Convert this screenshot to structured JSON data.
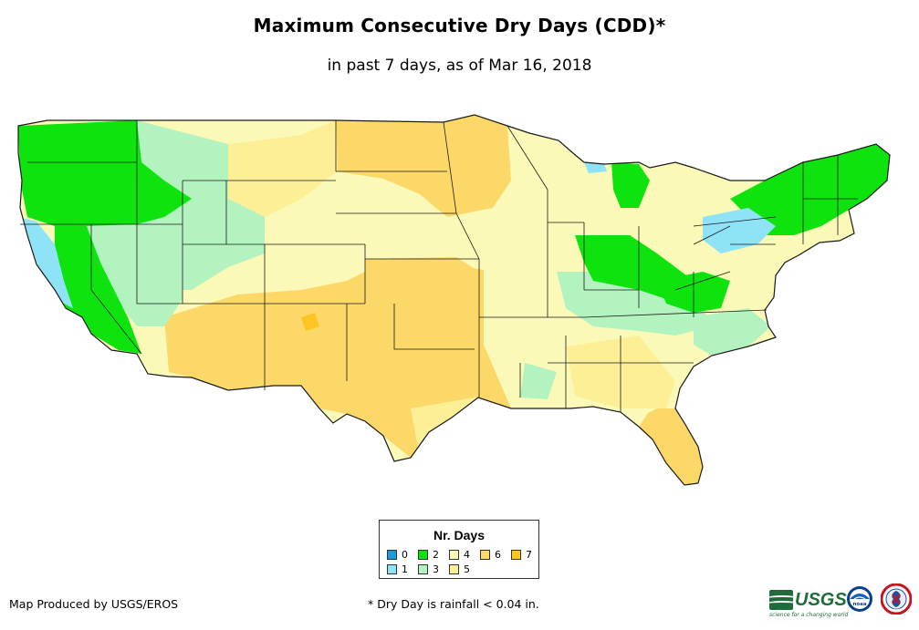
{
  "title": "Maximum Consecutive Dry Days (CDD)*",
  "subtitle": "in past 7 days, as of Mar 16, 2018",
  "legend": {
    "title": "Nr. Days",
    "items": [
      {
        "label": "0",
        "color": "#1c9bdb"
      },
      {
        "label": "1",
        "color": "#8ee3f6"
      },
      {
        "label": "2",
        "color": "#0ee30e"
      },
      {
        "label": "3",
        "color": "#b2f3c0"
      },
      {
        "label": "4",
        "color": "#fbf9b8"
      },
      {
        "label": "5",
        "color": "#fcef95"
      },
      {
        "label": "6",
        "color": "#fbd867"
      },
      {
        "label": "7",
        "color": "#fdc524"
      }
    ]
  },
  "credit": "Map Produced by USGS/EROS",
  "footnote": "* Dry Day is rainfall < 0.04 in.",
  "logos": {
    "usgs": "USGS",
    "usgs_tagline": "science for a changing world",
    "noaa": "noaa",
    "nws": "NWS"
  },
  "icons": [
    "usgs-logo",
    "noaa-logo-icon",
    "nws-logo-icon"
  ]
}
